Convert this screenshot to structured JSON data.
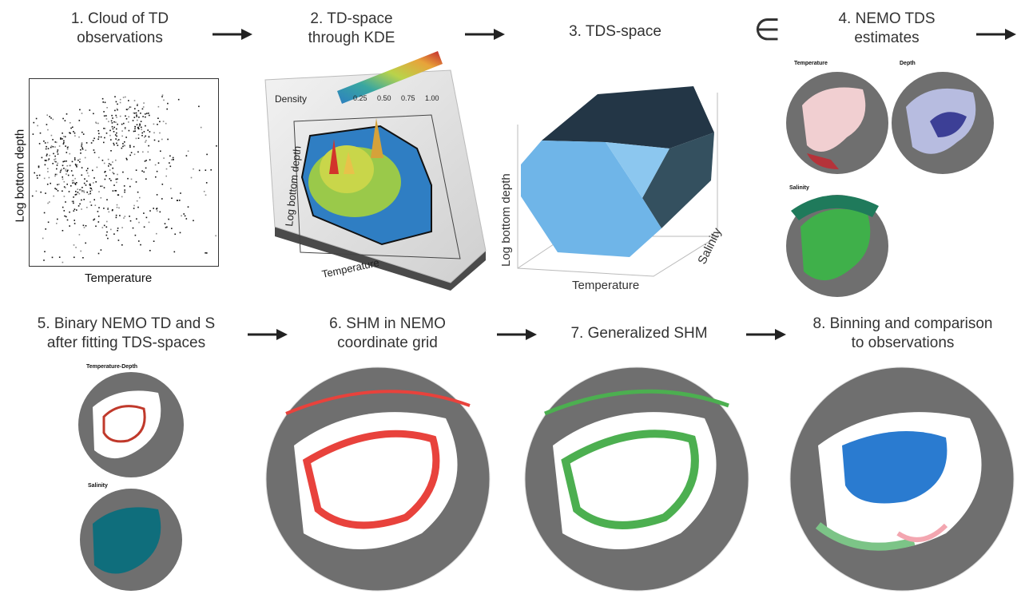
{
  "steps": [
    {
      "num": "1.",
      "title_line1": "Cloud of TD",
      "title_line2": "observations"
    },
    {
      "num": "2.",
      "title_line1": "TD-space",
      "title_line2": "through KDE"
    },
    {
      "num": "3.",
      "title_line1": "TDS-space",
      "title_line2": ""
    },
    {
      "num": "4.",
      "title_line1": "NEMO TDS",
      "title_line2": "estimates"
    },
    {
      "num": "5.",
      "title_line1": "Binary NEMO TD and S",
      "title_line2": "after fitting TDS-spaces"
    },
    {
      "num": "6.",
      "title_line1": "SHM in NEMO",
      "title_line2": "coordinate grid"
    },
    {
      "num": "7.",
      "title_line1": "Generalized SHM",
      "title_line2": ""
    },
    {
      "num": "8.",
      "title_line1": "Binning and comparison",
      "title_line2": "to observations"
    }
  ],
  "element_of_symbol": "∈",
  "panel1": {
    "xlabel": "Temperature",
    "ylabel": "Log bottom depth"
  },
  "panel2": {
    "legend_title": "Density",
    "legend_ticks": [
      "0.25",
      "0.50",
      "0.75",
      "1.00"
    ],
    "xlabel": "Temperature",
    "ylabel": "Log bottom depth"
  },
  "panel3": {
    "xlabel": "Temperature",
    "ylabel": "Log bottom depth",
    "zlabel": "Salinity"
  },
  "panel4": {
    "maps": [
      "Temperature",
      "Depth",
      "Salinity"
    ]
  },
  "panel5": {
    "maps": [
      "Temperature-Depth",
      "Salinity"
    ]
  },
  "colors": {
    "land": "#6f6f6f",
    "ocean": "#ffffff",
    "shm_red": "#e8423c",
    "shm_green": "#4caf50",
    "obs_blue": "#2a7bd0",
    "salinity_teal": "#0f6e7c",
    "tds_blue": "#6fb5e8",
    "tds_dark": "#2f4756"
  }
}
